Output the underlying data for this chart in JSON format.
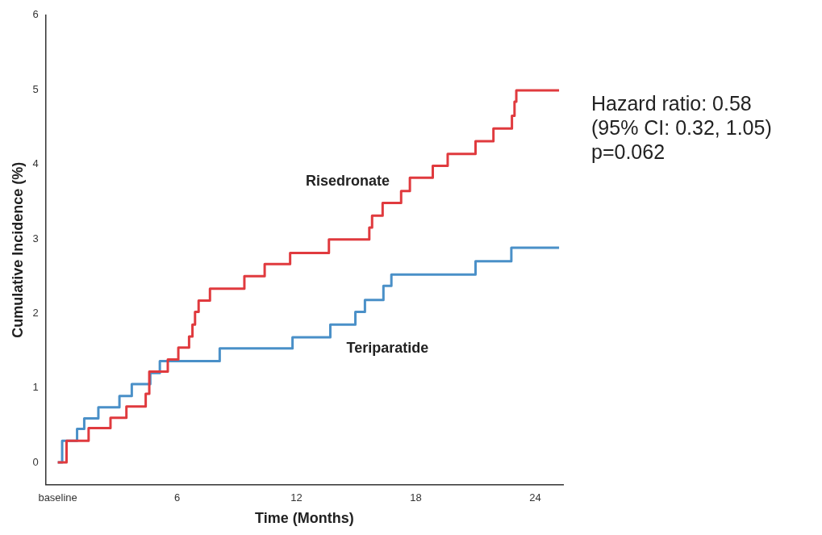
{
  "chart_data": {
    "type": "step",
    "xlabel": "Time (Months)",
    "ylabel": "Cumulative Incidence (%)",
    "xlim": [
      -0.6,
      25.4
    ],
    "ylim": [
      -0.3,
      6
    ],
    "xticks": [
      {
        "value": 0,
        "label": "baseline"
      },
      6,
      12,
      18,
      24
    ],
    "yticks": [
      0,
      1,
      2,
      3,
      4,
      5,
      6
    ],
    "grid": false,
    "legend": false,
    "marker": "none",
    "line_style": "solid",
    "series": [
      {
        "name": "Risedronate",
        "color": "#e03a3e",
        "x": [
          0,
          0.44,
          1.55,
          2.65,
          3.45,
          4.42,
          4.6,
          5.53,
          6.06,
          6.6,
          6.77,
          6.9,
          7.08,
          7.65,
          9.38,
          10.4,
          11.68,
          13.63,
          15.66,
          15.8,
          16.33,
          17.26,
          17.7,
          18.85,
          19.6,
          21.0,
          21.9,
          22.83,
          22.96,
          23.05,
          25.2
        ],
        "values": [
          0,
          0.29,
          0.46,
          0.6,
          0.75,
          0.92,
          1.22,
          1.38,
          1.54,
          1.69,
          1.85,
          2.02,
          2.17,
          2.33,
          2.5,
          2.66,
          2.81,
          2.99,
          3.15,
          3.31,
          3.48,
          3.64,
          3.82,
          3.98,
          4.14,
          4.31,
          4.48,
          4.65,
          4.84,
          4.99,
          4.99
        ]
      },
      {
        "name": "Teriparatide",
        "color": "#4a90c8",
        "x": [
          0,
          0.22,
          0.97,
          1.33,
          2.04,
          3.1,
          3.72,
          4.65,
          5.13,
          8.14,
          11.8,
          13.7,
          14.96,
          15.44,
          16.37,
          16.77,
          21.0,
          22.8,
          25.2
        ],
        "values": [
          0,
          0.29,
          0.45,
          0.59,
          0.74,
          0.89,
          1.05,
          1.2,
          1.36,
          1.53,
          1.68,
          1.85,
          2.02,
          2.18,
          2.37,
          2.52,
          2.7,
          2.88,
          2.88
        ]
      }
    ],
    "annotations": [
      "Hazard ratio: 0.58",
      "(95% CI: 0.32, 1.05)",
      "p=0.062"
    ]
  }
}
